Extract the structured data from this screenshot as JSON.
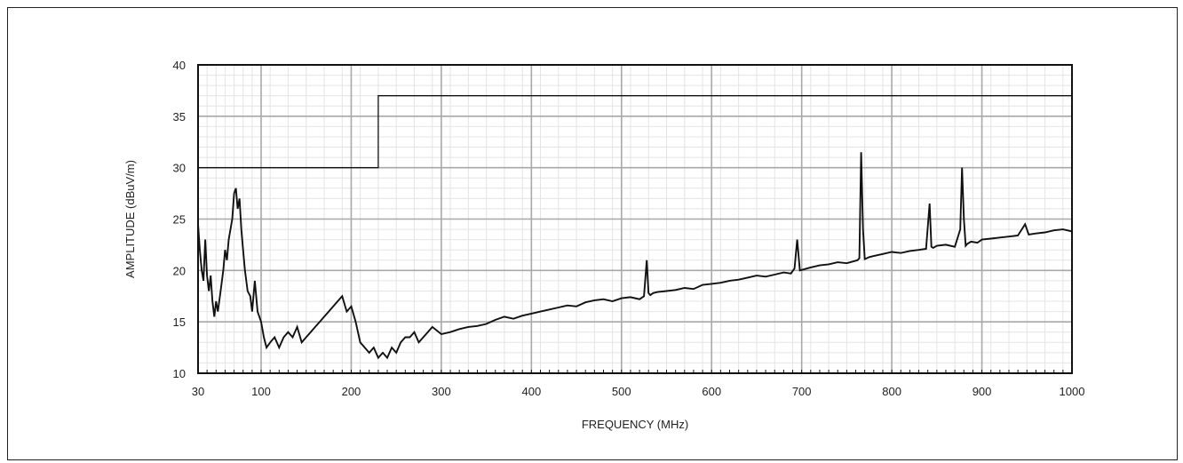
{
  "chart_data": {
    "type": "line",
    "title": "",
    "xlabel": "FREQUENCY (MHz)",
    "ylabel": "AMPLITUDE (dBuV/m)",
    "xlim": [
      30,
      1000
    ],
    "ylim": [
      10,
      40
    ],
    "xticks": [
      30,
      100,
      200,
      300,
      400,
      500,
      600,
      700,
      800,
      900,
      1000
    ],
    "yticks": [
      10,
      15,
      20,
      25,
      30,
      35,
      40
    ],
    "grid": true,
    "series": [
      {
        "role": "limit",
        "x": [
          30,
          230,
          230,
          1000
        ],
        "y": [
          30,
          30,
          37,
          37
        ]
      },
      {
        "role": "measured",
        "x": [
          30,
          32,
          34,
          36,
          38,
          40,
          42,
          44,
          46,
          48,
          50,
          52,
          55,
          58,
          60,
          62,
          64,
          66,
          68,
          70,
          72,
          74,
          76,
          78,
          80,
          82,
          85,
          88,
          90,
          93,
          96,
          100,
          103,
          106,
          110,
          115,
          120,
          125,
          130,
          135,
          140,
          145,
          150,
          155,
          160,
          165,
          170,
          175,
          180,
          185,
          190,
          195,
          200,
          205,
          210,
          215,
          220,
          225,
          230,
          235,
          240,
          245,
          250,
          255,
          260,
          265,
          270,
          275,
          280,
          285,
          290,
          300,
          310,
          320,
          330,
          340,
          350,
          360,
          370,
          380,
          390,
          400,
          410,
          420,
          430,
          440,
          450,
          460,
          470,
          480,
          490,
          500,
          510,
          520,
          525,
          528,
          530,
          532,
          535,
          540,
          550,
          560,
          570,
          580,
          590,
          600,
          610,
          620,
          630,
          640,
          650,
          660,
          670,
          680,
          688,
          692,
          695,
          698,
          702,
          710,
          720,
          730,
          740,
          750,
          758,
          762,
          764,
          766,
          768,
          770,
          775,
          780,
          790,
          800,
          810,
          820,
          830,
          838,
          842,
          844,
          846,
          850,
          860,
          870,
          876,
          878,
          880,
          882,
          884,
          888,
          895,
          900,
          910,
          920,
          930,
          940,
          948,
          952,
          960,
          970,
          980,
          990,
          1000
        ],
        "y": [
          24.5,
          22,
          20,
          19,
          23,
          19.5,
          18,
          19.5,
          17,
          15.5,
          17,
          16,
          18,
          20,
          22,
          21,
          23,
          24,
          25,
          27.5,
          28,
          26,
          27,
          24,
          22,
          20,
          18,
          17.5,
          16,
          19,
          16,
          15,
          13.5,
          12.5,
          13,
          13.5,
          12.5,
          13.5,
          14,
          13.5,
          14.5,
          13,
          13.5,
          14,
          14.5,
          15,
          15.5,
          16,
          16.5,
          17,
          17.5,
          16,
          16.5,
          15,
          13,
          12.5,
          12,
          12.5,
          11.5,
          12,
          11.5,
          12.5,
          12,
          13,
          13.5,
          13.5,
          14,
          13,
          13.5,
          14,
          14.5,
          13.8,
          14,
          14.3,
          14.5,
          14.6,
          14.8,
          15.2,
          15.5,
          15.3,
          15.6,
          15.8,
          16.0,
          16.2,
          16.4,
          16.6,
          16.5,
          16.9,
          17.1,
          17.2,
          17.0,
          17.3,
          17.4,
          17.2,
          17.5,
          21,
          17.8,
          17.6,
          17.8,
          17.9,
          18.0,
          18.1,
          18.3,
          18.2,
          18.6,
          18.7,
          18.8,
          19.0,
          19.1,
          19.3,
          19.5,
          19.4,
          19.6,
          19.8,
          19.7,
          20.2,
          23,
          20.0,
          20.1,
          20.3,
          20.5,
          20.6,
          20.8,
          20.7,
          20.9,
          21.0,
          21.2,
          31.5,
          24,
          21.1,
          21.3,
          21.4,
          21.6,
          21.8,
          21.7,
          21.9,
          22.0,
          22.1,
          26.5,
          22.3,
          22.2,
          22.4,
          22.5,
          22.3,
          24,
          30,
          25,
          22.4,
          22.6,
          22.8,
          22.7,
          23.0,
          23.1,
          23.2,
          23.3,
          23.4,
          24.5,
          23.5,
          23.6,
          23.7,
          23.9,
          24.0,
          23.8
        ]
      }
    ]
  }
}
